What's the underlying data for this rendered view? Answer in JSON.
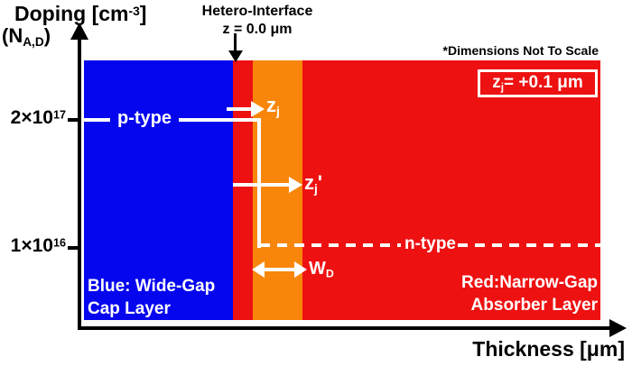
{
  "colors": {
    "blue_cap": "#0505ee",
    "red_absorber": "#ee1111",
    "orange_depletion": "#f8860b",
    "axis_black": "#000000",
    "annotation_white": "#ffffff"
  },
  "y_axis": {
    "title": {
      "pre": "Doping [cm",
      "sup": "-3",
      "post": "]"
    },
    "subtitle": {
      "pre": "(N",
      "sub": "A,D",
      "post": ")"
    },
    "ticks": [
      {
        "base": "2×10",
        "exp": "17"
      },
      {
        "base": "1×10",
        "exp": "16"
      }
    ]
  },
  "x_axis": {
    "title": "Thickness [μm]"
  },
  "annotations": {
    "hetero_interface": {
      "line1": "Hetero-Interface",
      "line2": "z = 0.0 μm"
    },
    "dimensions_note": "*Dimensions Not To Scale",
    "zj_box": {
      "base": "z",
      "sub": "j",
      "rest": "= +0.1 μm"
    },
    "p_type": "p-type",
    "n_type": "n-type",
    "zj": {
      "base": "z",
      "sub": "j"
    },
    "zj_prime": {
      "base": "z",
      "sub": "j",
      "prime": "'"
    },
    "wd": {
      "base": "W",
      "sub": "D"
    }
  },
  "regions": {
    "cap_label": {
      "line1": "Blue: Wide-Gap",
      "line2": "Cap Layer"
    },
    "absorber_label": {
      "line1": "Red:Narrow-Gap",
      "line2": "Absorber Layer"
    }
  },
  "profile": {
    "p_type_level": "2×10^17 cm^-3",
    "n_type_level": "1×10^16 cm^-3",
    "interface_position": "z = 0.0 μm",
    "junction_position": "zj = +0.1 μm"
  }
}
